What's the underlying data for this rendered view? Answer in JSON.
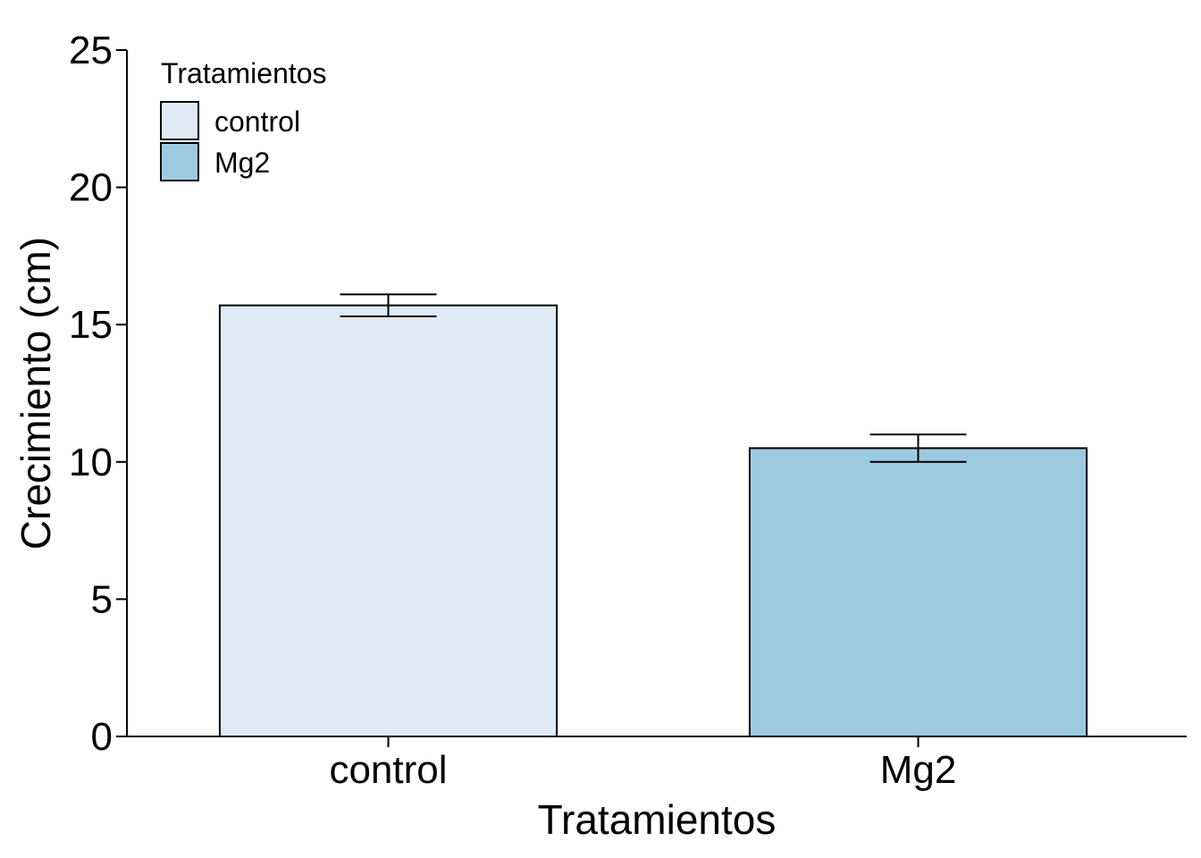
{
  "chart_data": {
    "type": "bar",
    "title": "",
    "xlabel": "Tratamientos",
    "ylabel": "Crecimiento (cm)",
    "categories": [
      "control",
      "Mg2"
    ],
    "values": [
      15.7,
      10.5
    ],
    "error": [
      0.4,
      0.5
    ],
    "colors": [
      "#DEEBF7",
      "#9ECAE1"
    ],
    "ylim": [
      0,
      25
    ],
    "yticks": [
      0,
      5,
      10,
      15,
      20,
      25
    ],
    "grid": false,
    "legend": {
      "title": "Tratamientos",
      "position": "top-left",
      "entries": [
        "control",
        "Mg2"
      ]
    }
  }
}
